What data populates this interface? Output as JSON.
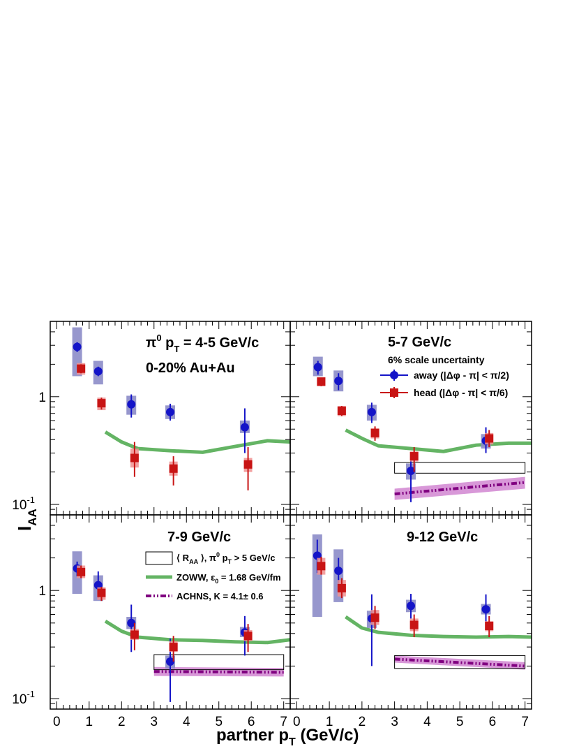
{
  "figure": {
    "ylabel_main": "I",
    "ylabel_sub": "AA",
    "xlabel_main": "partner p",
    "xlabel_sub": "T",
    "xlabel_rest": " (GeV/c)"
  },
  "colors": {
    "away": "#1414c8",
    "away_box": "#8c8cc8",
    "head": "#c81414",
    "head_box": "#f09090",
    "zoww": "#64b464",
    "achns": "#800080",
    "achns_band": "#d898d8",
    "raa_box": "#000000"
  },
  "legend": {
    "scale_note": "6% scale uncertainty",
    "away_label": "away (|Δφ - π| < π/2)",
    "head_label": "head (|Δφ - π| < π/6)",
    "raa_label_a": "⟨ R",
    "raa_label_sub": "AA",
    "raa_label_b": " ⟩, π",
    "raa_label_sup": "0",
    "raa_label_c": " p",
    "raa_label_sub2": "T",
    "raa_label_d": " > 5 GeV/c",
    "zoww_label_a": "ZOWW, ε",
    "zoww_label_sub": "0",
    "zoww_label_b": " = 1.68 GeV/fm",
    "achns_label": "ACHNS, K = 4.1± 0.6"
  },
  "chart_data": [
    {
      "type": "scatter",
      "panel": "top-left",
      "title_parts": [
        "π",
        "0",
        " p",
        "T",
        " = 4-5 GeV/c"
      ],
      "subtitle": "0-20% Au+Au",
      "xlim": [
        -0.2,
        7.2
      ],
      "ylim": [
        0.08,
        5
      ],
      "ylog": true,
      "x_ticks": [],
      "y_ticks": [
        {
          "v": 1,
          "label": "1"
        },
        {
          "v": 0.1,
          "label": "10",
          "sup": "-1"
        }
      ],
      "series": [
        {
          "name": "away",
          "points": [
            {
              "x": 0.63,
              "y": 2.9,
              "lo": 2.6,
              "hi": 3.2,
              "sys_lo": 1.55,
              "sys_hi": 4.4
            },
            {
              "x": 1.28,
              "y": 1.72,
              "lo": 1.55,
              "hi": 1.9,
              "sys_lo": 1.3,
              "sys_hi": 2.15
            },
            {
              "x": 2.3,
              "y": 0.85,
              "lo": 0.64,
              "hi": 1.05,
              "sys_lo": 0.68,
              "sys_hi": 1.02
            },
            {
              "x": 3.5,
              "y": 0.72,
              "lo": 0.6,
              "hi": 0.86,
              "sys_lo": 0.62,
              "sys_hi": 0.83
            },
            {
              "x": 5.8,
              "y": 0.52,
              "lo": 0.3,
              "hi": 0.78,
              "sys_lo": 0.46,
              "sys_hi": 0.6
            }
          ]
        },
        {
          "name": "head",
          "points": [
            {
              "x": 0.75,
              "y": 1.82,
              "lo": 1.65,
              "hi": 2.0,
              "sys_lo": 1.6,
              "sys_hi": 2.05
            },
            {
              "x": 1.38,
              "y": 0.87,
              "lo": 0.76,
              "hi": 0.98,
              "sys_lo": 0.75,
              "sys_hi": 0.98
            },
            {
              "x": 2.4,
              "y": 0.27,
              "lo": 0.18,
              "hi": 0.38,
              "sys_lo": 0.22,
              "sys_hi": 0.33
            },
            {
              "x": 3.6,
              "y": 0.215,
              "lo": 0.15,
              "hi": 0.28,
              "sys_lo": 0.185,
              "sys_hi": 0.25
            },
            {
              "x": 5.9,
              "y": 0.235,
              "lo": 0.135,
              "hi": 0.34,
              "sys_lo": 0.2,
              "sys_hi": 0.27
            }
          ]
        }
      ],
      "zoww": {
        "x": [
          1.5,
          2.0,
          2.5,
          3.5,
          4.5,
          5.5,
          6.5,
          7.2
        ],
        "y": [
          0.47,
          0.38,
          0.33,
          0.315,
          0.305,
          0.345,
          0.39,
          0.38
        ]
      },
      "raa": null,
      "achns": null
    },
    {
      "type": "scatter",
      "panel": "top-right",
      "title_parts": [
        "5-7 GeV/c"
      ],
      "subtitle": "",
      "xlim": [
        -0.2,
        7.2
      ],
      "ylim": [
        0.08,
        5
      ],
      "ylog": true,
      "x_ticks": [],
      "y_ticks": [],
      "series": [
        {
          "name": "away",
          "points": [
            {
              "x": 0.65,
              "y": 1.88,
              "lo": 1.6,
              "hi": 2.15,
              "sys_lo": 1.55,
              "sys_hi": 2.35
            },
            {
              "x": 1.28,
              "y": 1.4,
              "lo": 1.15,
              "hi": 1.65,
              "sys_lo": 1.12,
              "sys_hi": 1.75
            },
            {
              "x": 2.3,
              "y": 0.72,
              "lo": 0.57,
              "hi": 0.88,
              "sys_lo": 0.6,
              "sys_hi": 0.84
            },
            {
              "x": 3.5,
              "y": 0.205,
              "lo": 0.105,
              "hi": 0.3,
              "sys_lo": 0.17,
              "sys_hi": 0.24
            },
            {
              "x": 5.8,
              "y": 0.39,
              "lo": 0.3,
              "hi": 0.52,
              "sys_lo": 0.33,
              "sys_hi": 0.45
            }
          ]
        },
        {
          "name": "head",
          "points": [
            {
              "x": 0.75,
              "y": 1.38,
              "lo": 1.25,
              "hi": 1.5,
              "sys_lo": 1.25,
              "sys_hi": 1.52
            },
            {
              "x": 1.38,
              "y": 0.74,
              "lo": 0.66,
              "hi": 0.82,
              "sys_lo": 0.66,
              "sys_hi": 0.82
            },
            {
              "x": 2.4,
              "y": 0.46,
              "lo": 0.39,
              "hi": 0.53,
              "sys_lo": 0.41,
              "sys_hi": 0.51
            },
            {
              "x": 3.6,
              "y": 0.28,
              "lo": 0.2,
              "hi": 0.34,
              "sys_lo": 0.25,
              "sys_hi": 0.31
            },
            {
              "x": 5.9,
              "y": 0.41,
              "lo": 0.34,
              "hi": 0.49,
              "sys_lo": 0.36,
              "sys_hi": 0.46
            }
          ]
        }
      ],
      "zoww": {
        "x": [
          1.5,
          2.0,
          2.5,
          3.5,
          4.5,
          5.5,
          6.5,
          7.2
        ],
        "y": [
          0.49,
          0.41,
          0.35,
          0.33,
          0.31,
          0.355,
          0.37,
          0.37
        ]
      },
      "raa": {
        "x0": 3.0,
        "x1": 7.0,
        "y0": 0.195,
        "y1": 0.245
      },
      "achns": {
        "x": [
          3.0,
          7.0
        ],
        "y": [
          0.125,
          0.16
        ],
        "band_lo": [
          0.11,
          0.14
        ],
        "band_hi": [
          0.14,
          0.18
        ]
      }
    },
    {
      "type": "scatter",
      "panel": "bottom-left",
      "title_parts": [
        "7-9 GeV/c"
      ],
      "subtitle": "",
      "xlim": [
        -0.2,
        7.2
      ],
      "ylim": [
        0.08,
        5
      ],
      "ylog": true,
      "x_ticks": [
        0,
        1,
        2,
        3,
        4,
        5,
        6,
        7
      ],
      "y_ticks": [
        {
          "v": 1,
          "label": "1"
        },
        {
          "v": 0.1,
          "label": "10",
          "sup": "-1"
        }
      ],
      "series": [
        {
          "name": "away",
          "points": [
            {
              "x": 0.63,
              "y": 1.6,
              "lo": 1.35,
              "hi": 1.85,
              "sys_lo": 0.93,
              "sys_hi": 2.3
            },
            {
              "x": 1.28,
              "y": 1.12,
              "lo": 0.85,
              "hi": 1.5,
              "sys_lo": 0.8,
              "sys_hi": 1.38
            },
            {
              "x": 2.3,
              "y": 0.5,
              "lo": 0.27,
              "hi": 0.74,
              "sys_lo": 0.44,
              "sys_hi": 0.57
            },
            {
              "x": 3.5,
              "y": 0.22,
              "lo": 0.093,
              "hi": 0.36,
              "sys_lo": 0.19,
              "sys_hi": 0.25
            },
            {
              "x": 5.8,
              "y": 0.41,
              "lo": 0.25,
              "hi": 0.58,
              "sys_lo": 0.37,
              "sys_hi": 0.46
            }
          ]
        },
        {
          "name": "head",
          "points": [
            {
              "x": 0.75,
              "y": 1.48,
              "lo": 1.3,
              "hi": 1.7,
              "sys_lo": 1.3,
              "sys_hi": 1.7
            },
            {
              "x": 1.38,
              "y": 0.95,
              "lo": 0.8,
              "hi": 1.08,
              "sys_lo": 0.82,
              "sys_hi": 1.07
            },
            {
              "x": 2.4,
              "y": 0.39,
              "lo": 0.28,
              "hi": 0.5,
              "sys_lo": 0.35,
              "sys_hi": 0.44
            },
            {
              "x": 3.6,
              "y": 0.3,
              "lo": 0.22,
              "hi": 0.38,
              "sys_lo": 0.27,
              "sys_hi": 0.34
            },
            {
              "x": 5.9,
              "y": 0.38,
              "lo": 0.27,
              "hi": 0.49,
              "sys_lo": 0.34,
              "sys_hi": 0.43
            }
          ]
        }
      ],
      "zoww": {
        "x": [
          1.5,
          2.0,
          2.5,
          3.5,
          4.5,
          5.5,
          6.5,
          7.2
        ],
        "y": [
          0.52,
          0.42,
          0.37,
          0.35,
          0.345,
          0.335,
          0.33,
          0.35
        ]
      },
      "raa": {
        "x0": 3.0,
        "x1": 7.0,
        "y0": 0.185,
        "y1": 0.255
      },
      "achns": {
        "x": [
          3.0,
          7.0
        ],
        "y": [
          0.178,
          0.175
        ],
        "band_lo": [
          0.162,
          0.16
        ],
        "band_hi": [
          0.196,
          0.192
        ]
      }
    },
    {
      "type": "scatter",
      "panel": "bottom-right",
      "title_parts": [
        "9-12 GeV/c"
      ],
      "subtitle": "",
      "xlim": [
        -0.2,
        7.2
      ],
      "ylim": [
        0.08,
        5
      ],
      "ylog": true,
      "x_ticks": [
        0,
        1,
        2,
        3,
        4,
        5,
        6,
        7
      ],
      "y_ticks": [],
      "series": [
        {
          "name": "away",
          "points": [
            {
              "x": 0.63,
              "y": 2.1,
              "lo": 1.45,
              "hi": 2.95,
              "sys_lo": 0.57,
              "sys_hi": 3.3
            },
            {
              "x": 1.28,
              "y": 1.52,
              "lo": 1.05,
              "hi": 2.0,
              "sys_lo": 0.78,
              "sys_hi": 2.4
            },
            {
              "x": 2.3,
              "y": 0.55,
              "lo": 0.2,
              "hi": 0.92,
              "sys_lo": 0.45,
              "sys_hi": 0.65
            },
            {
              "x": 3.5,
              "y": 0.72,
              "lo": 0.55,
              "hi": 0.93,
              "sys_lo": 0.63,
              "sys_hi": 0.82
            },
            {
              "x": 5.8,
              "y": 0.67,
              "lo": 0.45,
              "hi": 0.92,
              "sys_lo": 0.6,
              "sys_hi": 0.75
            }
          ]
        },
        {
          "name": "head",
          "points": [
            {
              "x": 0.75,
              "y": 1.68,
              "lo": 1.4,
              "hi": 2.05,
              "sys_lo": 1.4,
              "sys_hi": 2.0
            },
            {
              "x": 1.38,
              "y": 1.05,
              "lo": 0.85,
              "hi": 1.3,
              "sys_lo": 0.88,
              "sys_hi": 1.25
            },
            {
              "x": 2.4,
              "y": 0.56,
              "lo": 0.44,
              "hi": 0.72,
              "sys_lo": 0.48,
              "sys_hi": 0.66
            },
            {
              "x": 3.6,
              "y": 0.48,
              "lo": 0.37,
              "hi": 0.6,
              "sys_lo": 0.42,
              "sys_hi": 0.55
            },
            {
              "x": 5.9,
              "y": 0.47,
              "lo": 0.37,
              "hi": 0.58,
              "sys_lo": 0.42,
              "sys_hi": 0.52
            }
          ]
        }
      ],
      "zoww": {
        "x": [
          1.5,
          2.0,
          2.5,
          3.5,
          4.5,
          5.5,
          6.5,
          7.2
        ],
        "y": [
          0.57,
          0.45,
          0.41,
          0.385,
          0.375,
          0.37,
          0.375,
          0.37
        ]
      },
      "raa": {
        "x0": 3.0,
        "x1": 7.0,
        "y0": 0.19,
        "y1": 0.25
      },
      "achns": {
        "x": [
          3.0,
          7.0
        ],
        "y": [
          0.232,
          0.2
        ],
        "band_lo": [
          0.215,
          0.185
        ],
        "band_hi": [
          0.25,
          0.217
        ]
      }
    }
  ]
}
